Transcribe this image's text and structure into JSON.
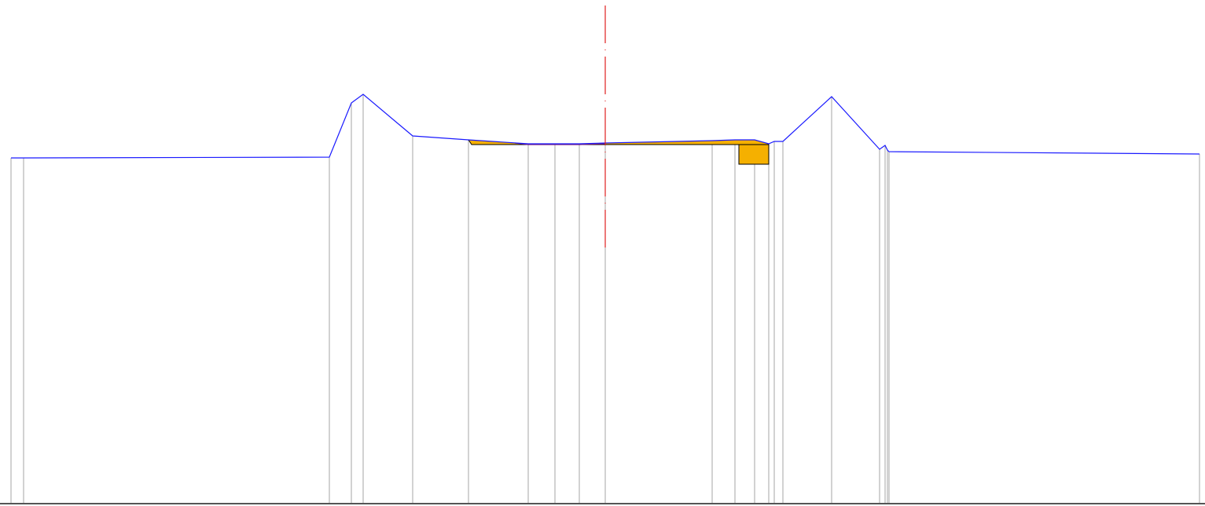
{
  "diagram": {
    "kind": "road cross-section profile",
    "colors": {
      "background": "#ffffff",
      "ground_line": "#1a1aff",
      "vertical_lines": "#a6a6a6",
      "fill_area": "#f5b000",
      "fill_outline": "#000000",
      "centerline": "#e02020",
      "pavement_line": "#7a1a7a",
      "bottom_border": "#555555"
    },
    "elements": [
      "ground-profile-line",
      "section-vertical-lines",
      "cut-fill-area",
      "curb-block",
      "road-centerline"
    ]
  }
}
